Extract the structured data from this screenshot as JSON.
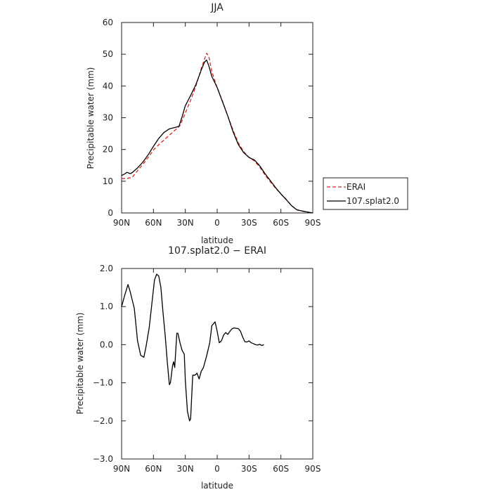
{
  "chart_data": [
    {
      "type": "line",
      "title": "JJA",
      "xlabel": "latitude",
      "ylabel": "Precipitable water (mm)",
      "xlim": [
        90,
        -90
      ],
      "ylim": [
        0,
        60
      ],
      "xticks": [
        90,
        60,
        30,
        0,
        -30,
        -60,
        -90
      ],
      "xtick_labels": [
        "90N",
        "60N",
        "30N",
        "0",
        "30S",
        "60S",
        "90S"
      ],
      "yticks": [
        0,
        10,
        20,
        30,
        40,
        50,
        60
      ],
      "ytick_labels": [
        "0",
        "10",
        "20",
        "30",
        "40",
        "50",
        "60"
      ],
      "grid": false,
      "legend_position": "right",
      "series": [
        {
          "name": "ERAI",
          "color": "#e0241b",
          "dash": "dashed",
          "points": [
            [
              90,
              10.8
            ],
            [
              85,
              10.9
            ],
            [
              80,
              11.2
            ],
            [
              75,
              13.3
            ],
            [
              70,
              15.3
            ],
            [
              65,
              17.5
            ],
            [
              60,
              19.8
            ],
            [
              55,
              21.5
            ],
            [
              50,
              23.0
            ],
            [
              45,
              24.5
            ],
            [
              40,
              26.0
            ],
            [
              35,
              27.5
            ],
            [
              30,
              31.5
            ],
            [
              25,
              35.5
            ],
            [
              20,
              40.0
            ],
            [
              15,
              45.5
            ],
            [
              10,
              50.3
            ],
            [
              8,
              49.5
            ],
            [
              5,
              44.5
            ],
            [
              0,
              39.5
            ],
            [
              -5,
              35.2
            ],
            [
              -10,
              30.5
            ],
            [
              -15,
              26.0
            ],
            [
              -20,
              22.0
            ],
            [
              -25,
              19.3
            ],
            [
              -30,
              17.5
            ],
            [
              -35,
              16.4
            ],
            [
              -40,
              14.5
            ],
            [
              -45,
              12.0
            ],
            [
              -50,
              9.8
            ],
            [
              -55,
              7.8
            ],
            [
              -60,
              6.0
            ],
            [
              -65,
              4.3
            ],
            [
              -70,
              2.3
            ],
            [
              -75,
              1.0
            ],
            [
              -80,
              0.6
            ],
            [
              -85,
              0.3
            ],
            [
              -90,
              0.0
            ]
          ]
        },
        {
          "name": "107.splat2.0",
          "color": "#000000",
          "dash": "solid",
          "points": [
            [
              90,
              11.8
            ],
            [
              87,
              12.3
            ],
            [
              85,
              12.8
            ],
            [
              82,
              12.4
            ],
            [
              80,
              12.7
            ],
            [
              75,
              14.2
            ],
            [
              70,
              16.0
            ],
            [
              65,
              18.3
            ],
            [
              60,
              21.0
            ],
            [
              55,
              23.5
            ],
            [
              50,
              25.4
            ],
            [
              45,
              26.5
            ],
            [
              40,
              26.9
            ],
            [
              36,
              27.3
            ],
            [
              33,
              30.3
            ],
            [
              30,
              33.8
            ],
            [
              25,
              37.0
            ],
            [
              20,
              40.5
            ],
            [
              15,
              45.0
            ],
            [
              12,
              47.5
            ],
            [
              10,
              48.2
            ],
            [
              8,
              46.5
            ],
            [
              5,
              43.0
            ],
            [
              0,
              39.5
            ],
            [
              -5,
              35.0
            ],
            [
              -10,
              30.5
            ],
            [
              -15,
              25.5
            ],
            [
              -20,
              21.5
            ],
            [
              -25,
              19.0
            ],
            [
              -30,
              17.5
            ],
            [
              -35,
              16.7
            ],
            [
              -40,
              14.9
            ],
            [
              -45,
              12.4
            ],
            [
              -50,
              10.2
            ],
            [
              -55,
              8.0
            ],
            [
              -60,
              6.0
            ],
            [
              -65,
              4.2
            ],
            [
              -70,
              2.3
            ],
            [
              -75,
              1.0
            ],
            [
              -80,
              0.6
            ],
            [
              -85,
              0.3
            ],
            [
              -90,
              0.0
            ]
          ]
        }
      ]
    },
    {
      "type": "line",
      "title": "107.splat2.0 − ERAI",
      "xlabel": "latitude",
      "ylabel": "Precipitable water (mm)",
      "xlim": [
        90,
        -90
      ],
      "ylim": [
        -3,
        2
      ],
      "xticks": [
        90,
        60,
        30,
        0,
        -30,
        -60,
        -90
      ],
      "xtick_labels": [
        "90N",
        "60N",
        "30N",
        "0",
        "30S",
        "60S",
        "90S"
      ],
      "yticks": [
        -3,
        -2,
        -1,
        0,
        1,
        2
      ],
      "ytick_labels": [
        "−3.0",
        "−2.0",
        "−1.0",
        "0.0",
        "1.0",
        "2.0"
      ],
      "grid": false,
      "series": [
        {
          "color": "#000000",
          "dash": "solid",
          "points": [
            [
              90,
              1.0
            ],
            [
              87,
              1.3
            ],
            [
              84,
              1.58
            ],
            [
              82,
              1.4
            ],
            [
              78,
              0.95
            ],
            [
              75,
              0.1
            ],
            [
              72,
              -0.28
            ],
            [
              69,
              -0.33
            ],
            [
              67,
              -0.05
            ],
            [
              64,
              0.45
            ],
            [
              61,
              1.2
            ],
            [
              59,
              1.7
            ],
            [
              57,
              1.85
            ],
            [
              55,
              1.8
            ],
            [
              53,
              1.5
            ],
            [
              51,
              0.85
            ],
            [
              49,
              0.25
            ],
            [
              47,
              -0.45
            ],
            [
              45,
              -1.05
            ],
            [
              44,
              -1.0
            ],
            [
              42,
              -0.55
            ],
            [
              41,
              -0.45
            ],
            [
              40,
              -0.6
            ],
            [
              38,
              0.3
            ],
            [
              37,
              0.3
            ],
            [
              35,
              0.05
            ],
            [
              33,
              -0.15
            ],
            [
              31,
              -0.25
            ],
            [
              30,
              -0.95
            ],
            [
              28,
              -1.75
            ],
            [
              26,
              -2.0
            ],
            [
              25,
              -1.95
            ],
            [
              23,
              -0.8
            ],
            [
              21,
              -0.8
            ],
            [
              19,
              -0.75
            ],
            [
              17,
              -0.9
            ],
            [
              15,
              -0.7
            ],
            [
              13,
              -0.6
            ],
            [
              10,
              -0.3
            ],
            [
              7,
              0.05
            ],
            [
              5,
              0.5
            ],
            [
              2,
              0.6
            ],
            [
              0,
              0.35
            ],
            [
              -2,
              0.05
            ],
            [
              -4,
              0.1
            ],
            [
              -6,
              0.25
            ],
            [
              -8,
              0.32
            ],
            [
              -10,
              0.27
            ],
            [
              -12,
              0.35
            ],
            [
              -14,
              0.42
            ],
            [
              -16,
              0.44
            ],
            [
              -18,
              0.43
            ],
            [
              -20,
              0.42
            ],
            [
              -22,
              0.35
            ],
            [
              -24,
              0.2
            ],
            [
              -26,
              0.08
            ],
            [
              -28,
              0.07
            ],
            [
              -30,
              0.1
            ],
            [
              -32,
              0.05
            ],
            [
              -34,
              0.03
            ],
            [
              -36,
              0.0
            ],
            [
              -38,
              -0.01
            ],
            [
              -40,
              0.01
            ],
            [
              -42,
              -0.02
            ],
            [
              -44,
              0.0
            ]
          ]
        }
      ]
    }
  ]
}
